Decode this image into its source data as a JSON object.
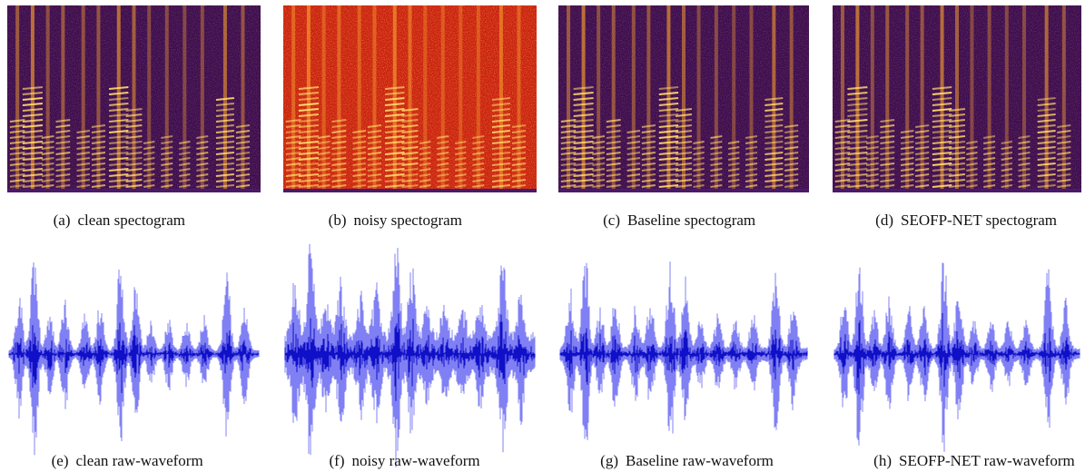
{
  "panels": [
    {
      "label": "(a)",
      "caption": "clean spectogram"
    },
    {
      "label": "(b)",
      "caption": "noisy spectogram"
    },
    {
      "label": "(c)",
      "caption": "Baseline spectogram"
    },
    {
      "label": "(d)",
      "caption": "SEOFP-NET spectogram"
    },
    {
      "label": "(e)",
      "caption": "clean raw-waveform"
    },
    {
      "label": "(f)",
      "caption": "noisy raw-waveform"
    },
    {
      "label": "(g)",
      "caption": "Baseline raw-waveform"
    },
    {
      "label": "(h)",
      "caption": "SEOFP-NET raw-waveform"
    }
  ]
}
